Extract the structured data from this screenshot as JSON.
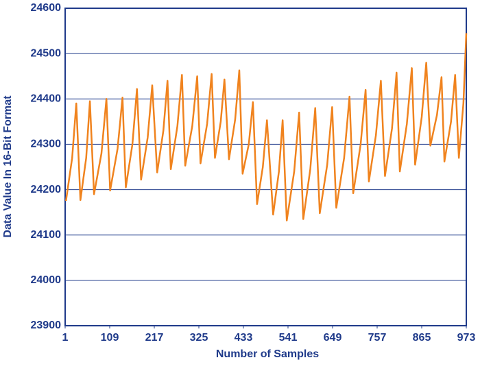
{
  "chart_data": {
    "type": "line",
    "x_label": "Number of Samples",
    "y_label": "Data Value In 16-Bit Format",
    "color": "#f0831e",
    "grid": true,
    "xlim": [
      1,
      973
    ],
    "ylim": [
      23900,
      24600
    ],
    "xticks": [
      1,
      109,
      217,
      325,
      433,
      541,
      649,
      757,
      865,
      973
    ],
    "yticks": [
      23900,
      24000,
      24100,
      24200,
      24300,
      24400,
      24500,
      24600
    ],
    "x": [
      3,
      18,
      28,
      38,
      52,
      61,
      71,
      89,
      101,
      110,
      128,
      140,
      148,
      164,
      175,
      185,
      201,
      212,
      224,
      239,
      249,
      257,
      273,
      284,
      292,
      309,
      321,
      329,
      345,
      356,
      364,
      378,
      387,
      398,
      413,
      423,
      431,
      446,
      456,
      466,
      480,
      490,
      505,
      519,
      528,
      538,
      556,
      568,
      578,
      595,
      607,
      618,
      636,
      648,
      658,
      677,
      690,
      699,
      717,
      729,
      737,
      754,
      766,
      776,
      793,
      804,
      812,
      829,
      841,
      849,
      865,
      876,
      886,
      902,
      913,
      920,
      936,
      946,
      955,
      966,
      973
    ],
    "values": [
      24175,
      24270,
      24390,
      24177,
      24270,
      24395,
      24190,
      24280,
      24400,
      24198,
      24290,
      24403,
      24205,
      24300,
      24422,
      24222,
      24315,
      24430,
      24238,
      24330,
      24440,
      24245,
      24340,
      24453,
      24253,
      24340,
      24450,
      24258,
      24345,
      24455,
      24270,
      24350,
      24443,
      24267,
      24355,
      24463,
      24235,
      24300,
      24393,
      24168,
      24250,
      24353,
      24145,
      24240,
      24353,
      24132,
      24240,
      24370,
      24135,
      24245,
      24380,
      24148,
      24255,
      24382,
      24160,
      24270,
      24405,
      24192,
      24300,
      24420,
      24218,
      24320,
      24440,
      24230,
      24335,
      24458,
      24240,
      24345,
      24468,
      24255,
      24360,
      24480,
      24297,
      24365,
      24448,
      24262,
      24350,
      24453,
      24270,
      24390,
      24545
    ]
  }
}
